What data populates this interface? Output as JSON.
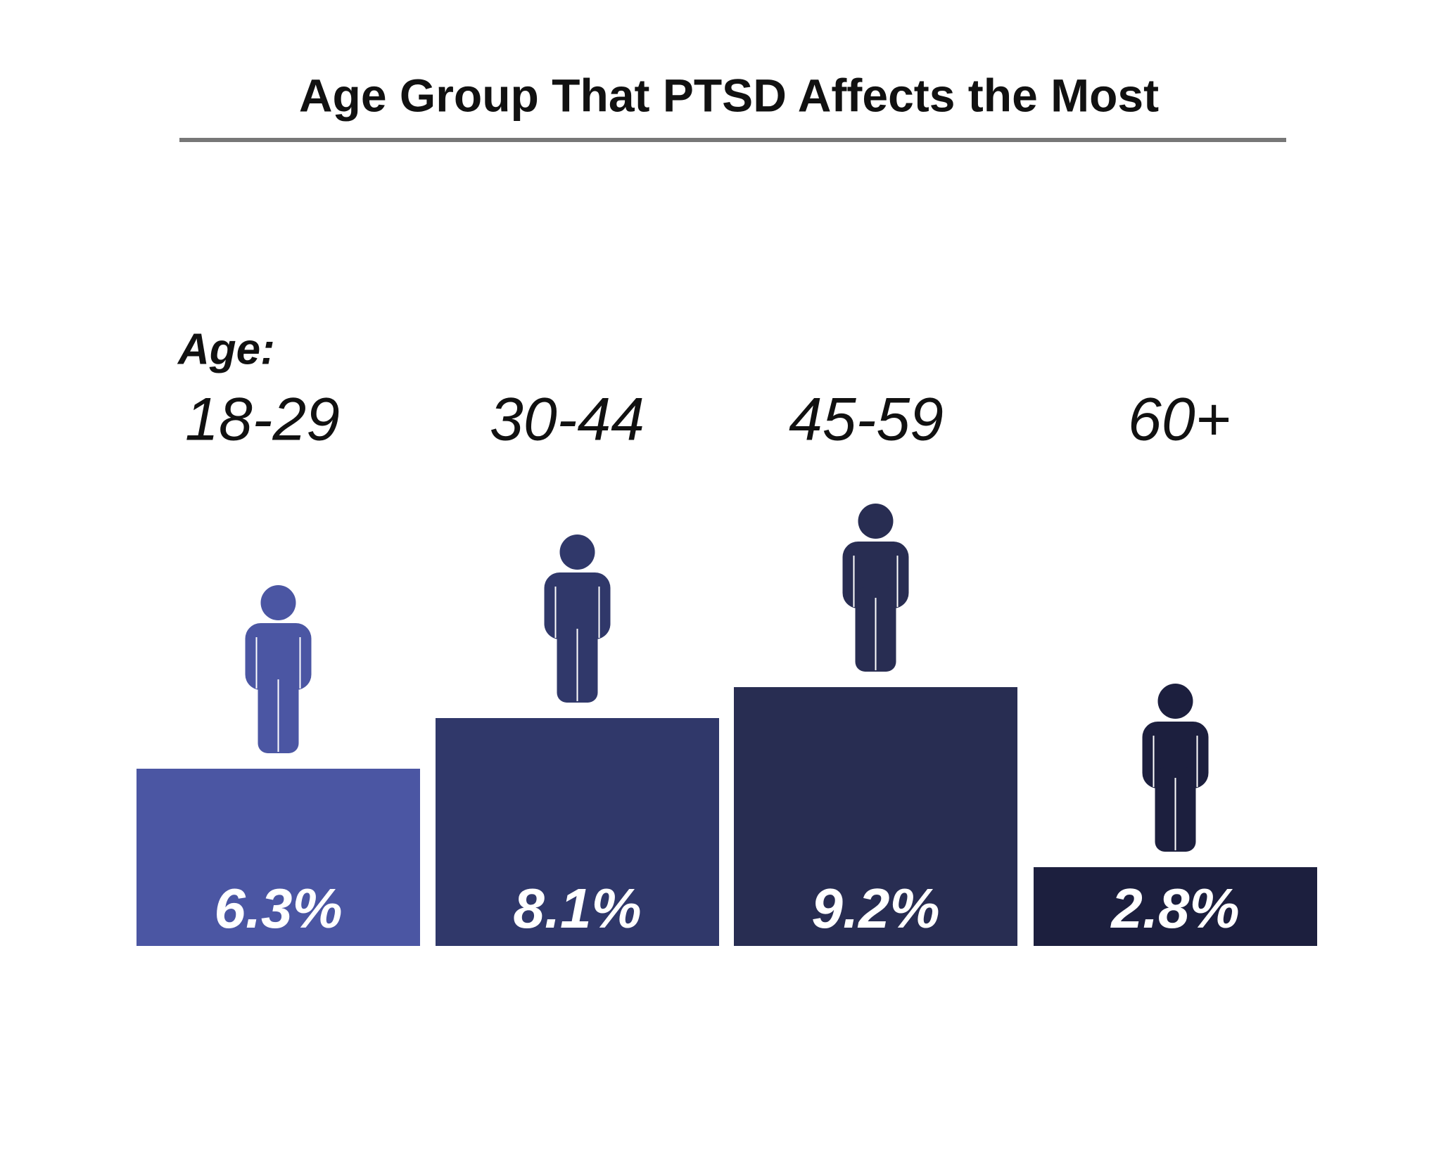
{
  "chart_data": {
    "type": "bar",
    "title": "Age Group That PTSD Affects the Most",
    "category_label": "Age:",
    "categories": [
      "18-29",
      "30-44",
      "45-59",
      "60+"
    ],
    "values": [
      6.3,
      8.1,
      9.2,
      2.8
    ],
    "value_labels": [
      "6.3%",
      "8.1%",
      "9.2%",
      "2.8%"
    ],
    "colors": [
      "#4b56a3",
      "#30386a",
      "#282d52",
      "#1c1f3e"
    ]
  }
}
